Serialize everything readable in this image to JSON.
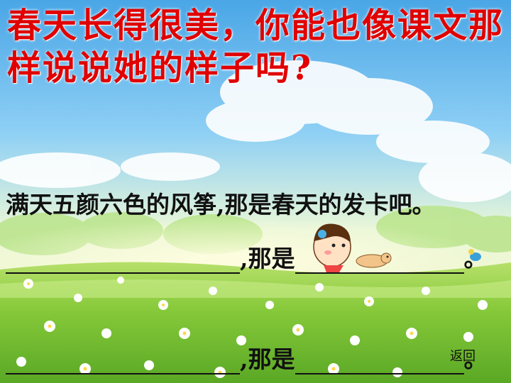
{
  "title": "春天长得很美，你能也像课文那样说说她的样子吗?",
  "example_sentence": "满天五颜六色的风筝,那是春天的发卡吧。",
  "blank_rows": [
    {
      "connector": ",那是",
      "end": "。"
    },
    {
      "connector": ",那是",
      "end": "。"
    }
  ],
  "back_link": "返回",
  "colors": {
    "title": "#e00000",
    "sky": "#5fb6ea",
    "grass": "#7ec93a"
  }
}
